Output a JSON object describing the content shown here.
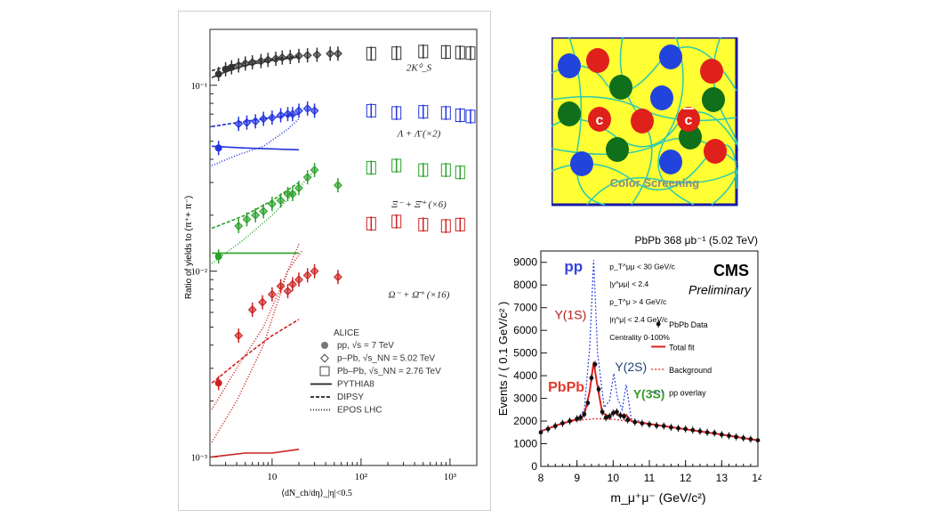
{
  "colors": {
    "strange_k0": "#333333",
    "lambda": "#2233dd",
    "xi": "#2aa02a",
    "omega": "#cc2222",
    "yellow": "#ffff33",
    "frame_blue": "#1a1aa6",
    "gluon": "#2ec9b0",
    "red_q": "#e0201a",
    "blue_q": "#2244dd",
    "green_q": "#0f6f1a",
    "pp_blue": "#3344dd"
  },
  "left_chart": {
    "chart_data": {
      "type": "scatter",
      "xscale": "log",
      "yscale": "log",
      "xlim": [
        2,
        2000
      ],
      "ylim": [
        0.0009,
        0.2
      ],
      "xlabel": "⟨dN_ch/dη⟩_|η|<0.5",
      "ylabel": "Ratio of yields to (π⁺+ π⁻)",
      "x_ticks": [
        "10",
        "10²",
        "10³"
      ],
      "y_ticks": [
        "10⁻¹",
        "10⁻²",
        "10⁻³"
      ],
      "series": [
        {
          "name": "2K⁰_S",
          "color": "#333333",
          "x": [
            2.5,
            3,
            3.5,
            4.2,
            5,
            6,
            7.5,
            9,
            11,
            13,
            16,
            20,
            25,
            32,
            45,
            55,
            130,
            250,
            500,
            900,
            1300,
            1700
          ],
          "y": [
            0.115,
            0.122,
            0.125,
            0.128,
            0.131,
            0.133,
            0.135,
            0.137,
            0.139,
            0.141,
            0.142,
            0.144,
            0.145,
            0.146,
            0.148,
            0.148,
            0.148,
            0.149,
            0.152,
            0.151,
            0.15,
            0.149
          ]
        },
        {
          "name": "Λ + Λ̄ (×2)",
          "color": "#2233dd",
          "x": [
            2.5,
            4.2,
            5.2,
            6.5,
            8,
            10,
            12.5,
            15,
            17,
            20,
            25,
            30,
            130,
            250,
            500,
            900,
            1300,
            1700
          ],
          "y": [
            0.046,
            0.062,
            0.063,
            0.064,
            0.066,
            0.067,
            0.069,
            0.07,
            0.07,
            0.073,
            0.075,
            0.073,
            0.073,
            0.071,
            0.072,
            0.071,
            0.069,
            0.068
          ]
        },
        {
          "name": "Ξ⁻ + Ξ̄⁺ (×6)",
          "color": "#2aa02a",
          "x": [
            2.5,
            4.2,
            5.2,
            6.5,
            8,
            10,
            12.5,
            15,
            17,
            20,
            25,
            30,
            55,
            130,
            250,
            500,
            900,
            1300
          ],
          "y": [
            0.012,
            0.0175,
            0.019,
            0.02,
            0.021,
            0.023,
            0.024,
            0.026,
            0.026,
            0.028,
            0.032,
            0.035,
            0.029,
            0.036,
            0.037,
            0.035,
            0.035,
            0.034
          ]
        },
        {
          "name": "Ω⁻ + Ω̄⁺ (×16)",
          "color": "#cc2222",
          "x": [
            2.5,
            4.2,
            6,
            7.8,
            10,
            12.5,
            15,
            17,
            20,
            25,
            30,
            55,
            130,
            250,
            500,
            900,
            1300
          ],
          "y": [
            0.0025,
            0.0045,
            0.0062,
            0.0068,
            0.0075,
            0.0083,
            0.0078,
            0.0085,
            0.009,
            0.0095,
            0.01,
            0.0093,
            0.018,
            0.0185,
            0.0178,
            0.0175,
            0.0178
          ]
        }
      ],
      "legend": {
        "title": "ALICE",
        "items": [
          "pp, √s = 7 TeV",
          "p–Pb, √s_NN = 5.02 TeV",
          "Pb–Pb, √s_NN = 2.76 TeV",
          "PYTHIA8",
          "DIPSY",
          "EPOS LHC"
        ],
        "placement": "bottom-right"
      }
    }
  },
  "diagram": {
    "c_label": "c",
    "cbar_label": "c",
    "caption": "Color Screening"
  },
  "right_chart": {
    "chart_data": {
      "type": "line",
      "title": "PbPb 368 μb⁻¹ (5.02 TeV)",
      "xlabel": "m_μ⁺μ⁻ (GeV/c²)",
      "ylabel": "Events / ( 0.1 GeV/c² )",
      "xlim": [
        8,
        14
      ],
      "ylim": [
        0,
        9500
      ],
      "x_ticks": [
        "8",
        "9",
        "10",
        "11",
        "12",
        "13",
        "14"
      ],
      "y_ticks": [
        "0",
        "1000",
        "2000",
        "3000",
        "4000",
        "5000",
        "6000",
        "7000",
        "8000",
        "9000"
      ],
      "experiment": "CMS",
      "status": "Preliminary",
      "cuts": [
        "p_T^μμ < 30 GeV/c",
        "|y^μμ| < 2.4",
        "p_T^μ > 4 GeV/c",
        "|η^μ| < 2.4 GeV/c",
        "Centrality 0-100%"
      ],
      "peak_labels": {
        "pp": "pp",
        "y1s": "Υ(1S)",
        "y2s": "Υ(2S)",
        "y3s": "Υ(3S)",
        "pbpb": "PbPb"
      },
      "legend": [
        "PbPb Data",
        "Total fit",
        "Background",
        "pp overlay"
      ],
      "series": [
        {
          "name": "PbPb Data",
          "x": [
            8.0,
            8.2,
            8.4,
            8.6,
            8.8,
            9.0,
            9.1,
            9.2,
            9.3,
            9.4,
            9.5,
            9.6,
            9.7,
            9.8,
            9.9,
            10.0,
            10.1,
            10.2,
            10.3,
            10.4,
            10.6,
            10.8,
            11.0,
            11.2,
            11.4,
            11.6,
            11.8,
            12.0,
            12.2,
            12.4,
            12.6,
            12.8,
            13.0,
            13.2,
            13.4,
            13.6,
            13.8,
            14.0
          ],
          "y": [
            1500,
            1650,
            1780,
            1900,
            2000,
            2100,
            2150,
            2300,
            2800,
            3900,
            4500,
            3400,
            2400,
            2150,
            2200,
            2350,
            2400,
            2250,
            2200,
            2050,
            1950,
            1900,
            1850,
            1800,
            1780,
            1720,
            1680,
            1650,
            1600,
            1550,
            1500,
            1470,
            1400,
            1350,
            1300,
            1250,
            1200,
            1150
          ]
        },
        {
          "name": "Total fit",
          "x": [
            8.0,
            8.5,
            9.0,
            9.2,
            9.35,
            9.46,
            9.55,
            9.7,
            9.9,
            10.02,
            10.15,
            10.36,
            10.5,
            11.0,
            12.0,
            13.0,
            14.0
          ],
          "y": [
            1550,
            1850,
            2080,
            2250,
            3300,
            4600,
            3700,
            2350,
            2200,
            2420,
            2250,
            2270,
            2000,
            1870,
            1640,
            1400,
            1150
          ]
        },
        {
          "name": "Background",
          "x": [
            8.0,
            8.5,
            9.0,
            9.5,
            10.0,
            10.5,
            11.0,
            12.0,
            13.0,
            14.0
          ],
          "y": [
            1550,
            1850,
            2030,
            2100,
            2080,
            1980,
            1860,
            1640,
            1400,
            1150
          ]
        },
        {
          "name": "pp overlay",
          "x": [
            8.0,
            8.5,
            9.0,
            9.2,
            9.35,
            9.46,
            9.57,
            9.75,
            9.9,
            10.02,
            10.12,
            10.25,
            10.36,
            10.5,
            11.0,
            12.0,
            13.0,
            14.0
          ],
          "y": [
            1550,
            1850,
            2080,
            2500,
            5200,
            9100,
            5000,
            2600,
            2900,
            4100,
            3000,
            2500,
            3600,
            2100,
            1870,
            1640,
            1400,
            1150
          ]
        }
      ]
    }
  }
}
